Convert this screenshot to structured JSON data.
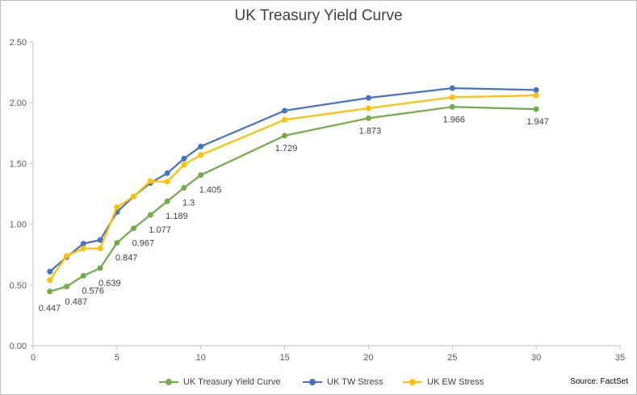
{
  "chart_data": {
    "type": "line",
    "title": "UK Treasury Yield Curve",
    "xlabel": "",
    "ylabel": "",
    "xlim": [
      0,
      35
    ],
    "ylim": [
      0,
      2.5
    ],
    "x_ticks": [
      0,
      5,
      10,
      15,
      20,
      25,
      30,
      35
    ],
    "y_ticks": [
      "0.00",
      "0.50",
      "1.00",
      "1.50",
      "2.00",
      "2.50"
    ],
    "grid": false,
    "legend_position": "bottom",
    "series": [
      {
        "name": "UK Treasury Yield Curve",
        "color": "#70ad47",
        "x": [
          1,
          2,
          3,
          4,
          5,
          6,
          7,
          8,
          9,
          10,
          15,
          20,
          25,
          30
        ],
        "values": [
          0.447,
          0.487,
          0.576,
          0.639,
          0.847,
          0.967,
          1.077,
          1.189,
          1.3,
          1.405,
          1.729,
          1.873,
          1.966,
          1.947
        ],
        "labels": [
          "0.447",
          "0.487",
          "0.576",
          "0.639",
          "0.847",
          "0.967",
          "1.077",
          "1.189",
          "1.3",
          "1.405",
          "1.729",
          "1.873",
          "1.966",
          "1.947"
        ]
      },
      {
        "name": "UK TW Stress",
        "color": "#4472c4",
        "x": [
          1,
          2,
          3,
          4,
          5,
          6,
          7,
          8,
          9,
          10,
          15,
          20,
          25,
          30
        ],
        "values": [
          0.61,
          0.73,
          0.84,
          0.87,
          1.1,
          1.23,
          1.34,
          1.42,
          1.54,
          1.64,
          1.935,
          2.04,
          2.12,
          2.105
        ]
      },
      {
        "name": "UK EW Stress",
        "color": "#ffc000",
        "x": [
          1,
          2,
          3,
          4,
          5,
          6,
          7,
          8,
          9,
          10,
          15,
          20,
          25,
          30
        ],
        "values": [
          0.54,
          0.74,
          0.8,
          0.8,
          1.14,
          1.23,
          1.355,
          1.35,
          1.49,
          1.57,
          1.86,
          1.955,
          2.045,
          2.06
        ]
      }
    ],
    "source": "Source: FactSet"
  }
}
